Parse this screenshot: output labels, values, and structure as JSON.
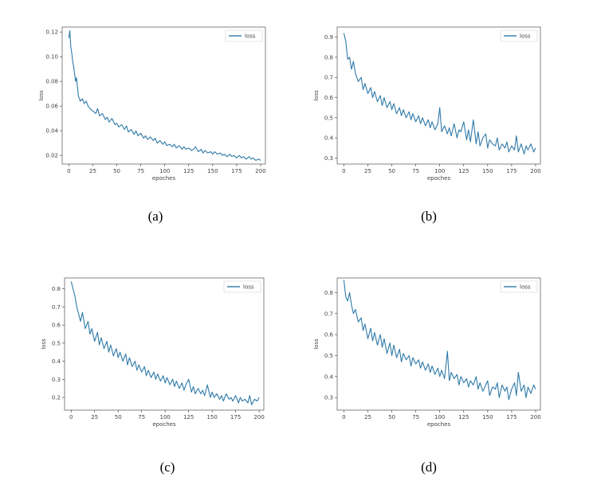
{
  "panels": [
    {
      "caption": "(a)",
      "chart_data": {
        "type": "line",
        "title": "",
        "xlabel": "epoches",
        "ylabel": "loss",
        "xlim": [
          -7,
          205
        ],
        "ylim": [
          0.013,
          0.124
        ],
        "xticks": [
          0,
          25,
          50,
          75,
          100,
          125,
          150,
          175,
          200
        ],
        "yticks": [
          0.12,
          0.1,
          0.08,
          0.06,
          0.04,
          0.02
        ],
        "ytick_labels": [
          "0.12",
          "0.10",
          "0.08",
          "0.06",
          "0.04",
          "0.02"
        ],
        "legend": {
          "placement": "top-right",
          "entries": [
            "loss"
          ]
        },
        "series": [
          {
            "name": "loss",
            "color": "#2f7aa8",
            "x": [
              0,
              1,
              2,
              3,
              4,
              5,
              6,
              7,
              8,
              9,
              10,
              12,
              14,
              16,
              18,
              20,
              22,
              25,
              28,
              30,
              32,
              35,
              38,
              40,
              42,
              45,
              48,
              50,
              52,
              55,
              58,
              60,
              62,
              65,
              68,
              70,
              72,
              75,
              78,
              80,
              82,
              85,
              88,
              90,
              92,
              95,
              98,
              100,
              102,
              105,
              108,
              110,
              112,
              115,
              118,
              120,
              122,
              125,
              128,
              130,
              132,
              135,
              138,
              140,
              142,
              145,
              148,
              150,
              152,
              155,
              158,
              160,
              162,
              165,
              168,
              170,
              172,
              175,
              178,
              180,
              182,
              185,
              188,
              190,
              192,
              195,
              198,
              200
            ],
            "y": [
              0.115,
              0.121,
              0.108,
              0.103,
              0.096,
              0.092,
              0.086,
              0.08,
              0.083,
              0.075,
              0.068,
              0.064,
              0.066,
              0.062,
              0.064,
              0.06,
              0.058,
              0.056,
              0.054,
              0.058,
              0.052,
              0.054,
              0.049,
              0.051,
              0.047,
              0.05,
              0.045,
              0.046,
              0.043,
              0.045,
              0.041,
              0.044,
              0.039,
              0.041,
              0.037,
              0.04,
              0.036,
              0.038,
              0.034,
              0.036,
              0.033,
              0.035,
              0.032,
              0.034,
              0.03,
              0.032,
              0.029,
              0.031,
              0.028,
              0.029,
              0.027,
              0.029,
              0.026,
              0.028,
              0.025,
              0.027,
              0.025,
              0.026,
              0.024,
              0.025,
              0.027,
              0.023,
              0.025,
              0.022,
              0.024,
              0.022,
              0.023,
              0.021,
              0.023,
              0.021,
              0.022,
              0.02,
              0.021,
              0.019,
              0.021,
              0.019,
              0.02,
              0.018,
              0.02,
              0.018,
              0.019,
              0.017,
              0.019,
              0.017,
              0.018,
              0.016,
              0.017,
              0.016
            ]
          }
        ]
      }
    },
    {
      "caption": "(b)",
      "chart_data": {
        "type": "line",
        "title": "",
        "xlabel": "epoches",
        "ylabel": "loss",
        "xlim": [
          -7,
          205
        ],
        "ylim": [
          0.27,
          0.95
        ],
        "xticks": [
          0,
          25,
          50,
          75,
          100,
          125,
          150,
          175,
          200
        ],
        "yticks": [
          0.9,
          0.8,
          0.7,
          0.6,
          0.5,
          0.4,
          0.3
        ],
        "ytick_labels": [
          "0.9",
          "0.8",
          "0.7",
          "0.6",
          "0.5",
          "0.4",
          "0.3"
        ],
        "legend": {
          "placement": "top-right",
          "entries": [
            "loss"
          ]
        },
        "series": [
          {
            "name": "loss",
            "color": "#2f7aa8",
            "x": [
              0,
              2,
              4,
              6,
              8,
              10,
              12,
              15,
              18,
              20,
              22,
              25,
              28,
              30,
              32,
              35,
              38,
              40,
              42,
              45,
              48,
              50,
              52,
              55,
              58,
              60,
              62,
              65,
              68,
              70,
              72,
              75,
              78,
              80,
              82,
              85,
              88,
              90,
              92,
              95,
              98,
              100,
              102,
              105,
              108,
              110,
              112,
              115,
              118,
              120,
              122,
              125,
              128,
              130,
              132,
              135,
              138,
              140,
              142,
              145,
              148,
              150,
              152,
              155,
              158,
              160,
              162,
              165,
              168,
              170,
              172,
              175,
              178,
              180,
              182,
              185,
              188,
              190,
              192,
              195,
              198,
              200
            ],
            "y": [
              0.92,
              0.88,
              0.79,
              0.8,
              0.74,
              0.78,
              0.72,
              0.68,
              0.7,
              0.64,
              0.67,
              0.62,
              0.65,
              0.6,
              0.63,
              0.58,
              0.61,
              0.56,
              0.6,
              0.55,
              0.58,
              0.54,
              0.57,
              0.52,
              0.55,
              0.51,
              0.54,
              0.5,
              0.53,
              0.49,
              0.52,
              0.48,
              0.51,
              0.47,
              0.5,
              0.46,
              0.49,
              0.45,
              0.48,
              0.44,
              0.47,
              0.55,
              0.43,
              0.46,
              0.42,
              0.45,
              0.41,
              0.47,
              0.4,
              0.44,
              0.43,
              0.48,
              0.39,
              0.44,
              0.38,
              0.49,
              0.37,
              0.43,
              0.36,
              0.4,
              0.42,
              0.35,
              0.39,
              0.37,
              0.36,
              0.4,
              0.34,
              0.37,
              0.35,
              0.38,
              0.33,
              0.36,
              0.34,
              0.41,
              0.33,
              0.37,
              0.32,
              0.36,
              0.34,
              0.37,
              0.33,
              0.35
            ]
          }
        ]
      }
    },
    {
      "caption": "(c)",
      "chart_data": {
        "type": "line",
        "title": "",
        "xlabel": "epoches",
        "ylabel": "loss",
        "xlim": [
          -7,
          205
        ],
        "ylim": [
          0.13,
          0.86
        ],
        "xticks": [
          0,
          25,
          50,
          75,
          100,
          125,
          150,
          175,
          200
        ],
        "yticks": [
          0.8,
          0.7,
          0.6,
          0.5,
          0.4,
          0.3,
          0.2
        ],
        "ytick_labels": [
          "0.8",
          "0.7",
          "0.6",
          "0.5",
          "0.4",
          "0.3",
          "0.2"
        ],
        "legend": {
          "placement": "top-right",
          "entries": [
            "loss"
          ]
        },
        "series": [
          {
            "name": "loss",
            "color": "#2f7aa8",
            "x": [
              0,
              2,
              4,
              6,
              8,
              10,
              12,
              15,
              18,
              20,
              22,
              25,
              28,
              30,
              32,
              35,
              38,
              40,
              42,
              45,
              48,
              50,
              52,
              55,
              58,
              60,
              62,
              65,
              68,
              70,
              72,
              75,
              78,
              80,
              82,
              85,
              88,
              90,
              92,
              95,
              98,
              100,
              102,
              105,
              108,
              110,
              112,
              115,
              118,
              120,
              122,
              125,
              128,
              130,
              132,
              135,
              138,
              140,
              142,
              145,
              148,
              150,
              152,
              155,
              158,
              160,
              162,
              165,
              168,
              170,
              172,
              175,
              178,
              180,
              182,
              185,
              188,
              190,
              192,
              195,
              198,
              200
            ],
            "y": [
              0.84,
              0.8,
              0.76,
              0.7,
              0.66,
              0.62,
              0.67,
              0.58,
              0.62,
              0.55,
              0.58,
              0.51,
              0.56,
              0.49,
              0.53,
              0.47,
              0.51,
              0.45,
              0.49,
              0.43,
              0.47,
              0.42,
              0.45,
              0.4,
              0.44,
              0.38,
              0.42,
              0.37,
              0.4,
              0.35,
              0.38,
              0.34,
              0.37,
              0.32,
              0.35,
              0.31,
              0.34,
              0.3,
              0.33,
              0.29,
              0.32,
              0.28,
              0.31,
              0.27,
              0.3,
              0.26,
              0.29,
              0.25,
              0.28,
              0.24,
              0.27,
              0.3,
              0.23,
              0.26,
              0.22,
              0.25,
              0.22,
              0.24,
              0.21,
              0.27,
              0.2,
              0.23,
              0.2,
              0.22,
              0.19,
              0.21,
              0.18,
              0.22,
              0.19,
              0.2,
              0.18,
              0.21,
              0.17,
              0.2,
              0.18,
              0.19,
              0.17,
              0.21,
              0.16,
              0.19,
              0.18,
              0.2
            ]
          }
        ]
      }
    },
    {
      "caption": "(d)",
      "chart_data": {
        "type": "line",
        "title": "",
        "xlabel": "epoches",
        "ylabel": "loss",
        "xlim": [
          -7,
          205
        ],
        "ylim": [
          0.24,
          0.87
        ],
        "xticks": [
          0,
          25,
          50,
          75,
          100,
          125,
          150,
          175,
          200
        ],
        "yticks": [
          0.8,
          0.7,
          0.6,
          0.5,
          0.4,
          0.3
        ],
        "ytick_labels": [
          "0.8",
          "0.7",
          "0.6",
          "0.5",
          "0.4",
          "0.3"
        ],
        "legend": {
          "placement": "top-right",
          "entries": [
            "loss"
          ]
        },
        "series": [
          {
            "name": "loss",
            "color": "#2f7aa8",
            "x": [
              0,
              2,
              4,
              6,
              8,
              10,
              12,
              15,
              18,
              20,
              22,
              25,
              28,
              30,
              32,
              35,
              38,
              40,
              42,
              45,
              48,
              50,
              52,
              55,
              58,
              60,
              62,
              65,
              68,
              70,
              72,
              75,
              78,
              80,
              82,
              85,
              88,
              90,
              92,
              95,
              98,
              100,
              102,
              105,
              108,
              110,
              112,
              115,
              118,
              120,
              122,
              125,
              128,
              130,
              132,
              135,
              138,
              140,
              142,
              145,
              148,
              150,
              152,
              155,
              158,
              160,
              162,
              165,
              168,
              170,
              172,
              175,
              178,
              180,
              182,
              185,
              188,
              190,
              192,
              195,
              198,
              200
            ],
            "y": [
              0.86,
              0.78,
              0.76,
              0.8,
              0.74,
              0.7,
              0.72,
              0.66,
              0.68,
              0.62,
              0.65,
              0.58,
              0.63,
              0.57,
              0.61,
              0.55,
              0.6,
              0.54,
              0.58,
              0.51,
              0.56,
              0.5,
              0.55,
              0.49,
              0.53,
              0.47,
              0.51,
              0.48,
              0.5,
              0.45,
              0.49,
              0.46,
              0.48,
              0.44,
              0.47,
              0.43,
              0.46,
              0.42,
              0.45,
              0.41,
              0.44,
              0.4,
              0.43,
              0.39,
              0.52,
              0.38,
              0.42,
              0.39,
              0.41,
              0.36,
              0.4,
              0.37,
              0.39,
              0.35,
              0.38,
              0.36,
              0.4,
              0.34,
              0.37,
              0.33,
              0.36,
              0.38,
              0.31,
              0.35,
              0.34,
              0.37,
              0.3,
              0.36,
              0.33,
              0.35,
              0.29,
              0.34,
              0.37,
              0.31,
              0.42,
              0.33,
              0.36,
              0.3,
              0.35,
              0.32,
              0.36,
              0.34
            ]
          }
        ]
      }
    }
  ]
}
